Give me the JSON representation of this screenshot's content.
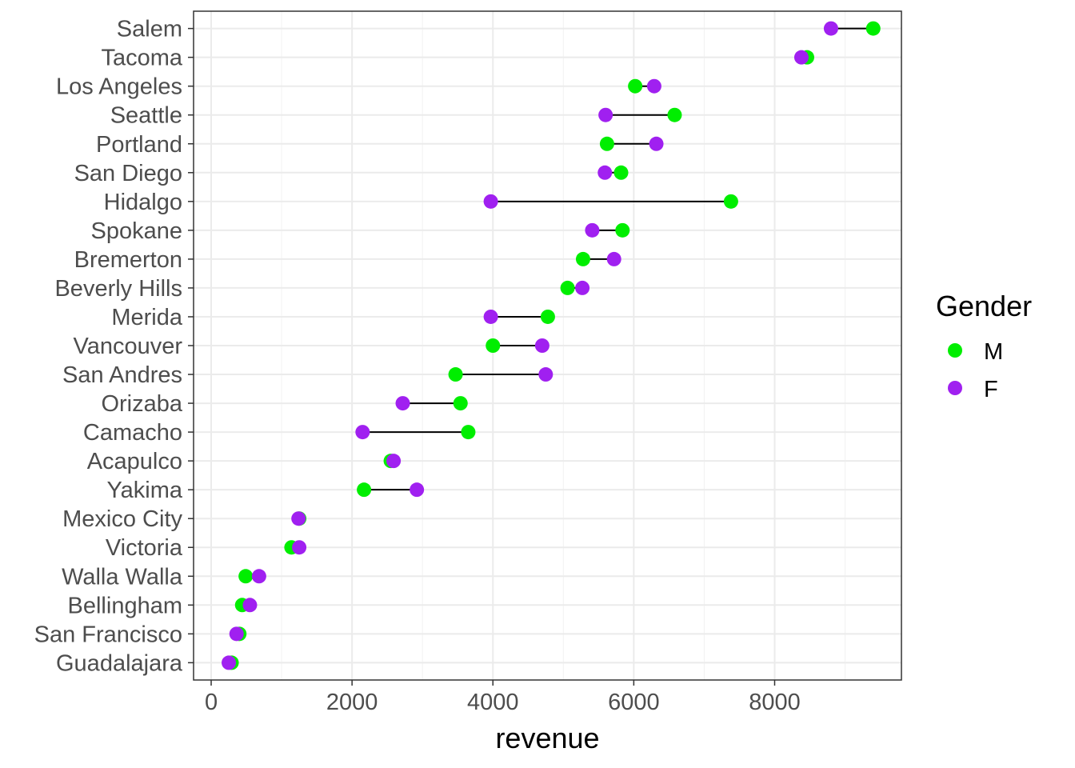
{
  "chart_data": {
    "type": "scatter",
    "subtype": "dumbbell",
    "xlabel": "revenue",
    "ylabel": "",
    "xlim": [
      -250,
      9800
    ],
    "xticks": [
      0,
      2000,
      4000,
      6000,
      8000
    ],
    "grid": true,
    "legend": {
      "title": "Gender",
      "position": "right"
    },
    "categories": [
      "Salem",
      "Tacoma",
      "Los Angeles",
      "Seattle",
      "Portland",
      "San Diego",
      "Hidalgo",
      "Spokane",
      "Bremerton",
      "Beverly Hills",
      "Merida",
      "Vancouver",
      "San Andres",
      "Orizaba",
      "Camacho",
      "Acapulco",
      "Yakima",
      "Mexico City",
      "Victoria",
      "Walla Walla",
      "Bellingham",
      "San Francisco",
      "Guadalajara"
    ],
    "series": [
      {
        "name": "M",
        "color": "#00ee00",
        "values": [
          9400,
          8460,
          6020,
          6580,
          5620,
          5820,
          7380,
          5840,
          5280,
          5060,
          4780,
          4000,
          3470,
          3540,
          3650,
          2550,
          2170,
          1250,
          1140,
          490,
          440,
          400,
          290
        ]
      },
      {
        "name": "F",
        "color": "#a020f0",
        "values": [
          8800,
          8380,
          6290,
          5600,
          6320,
          5590,
          3970,
          5410,
          5720,
          5270,
          3970,
          4700,
          4750,
          2720,
          2150,
          2590,
          2920,
          1240,
          1250,
          680,
          550,
          360,
          250
        ]
      }
    ]
  }
}
